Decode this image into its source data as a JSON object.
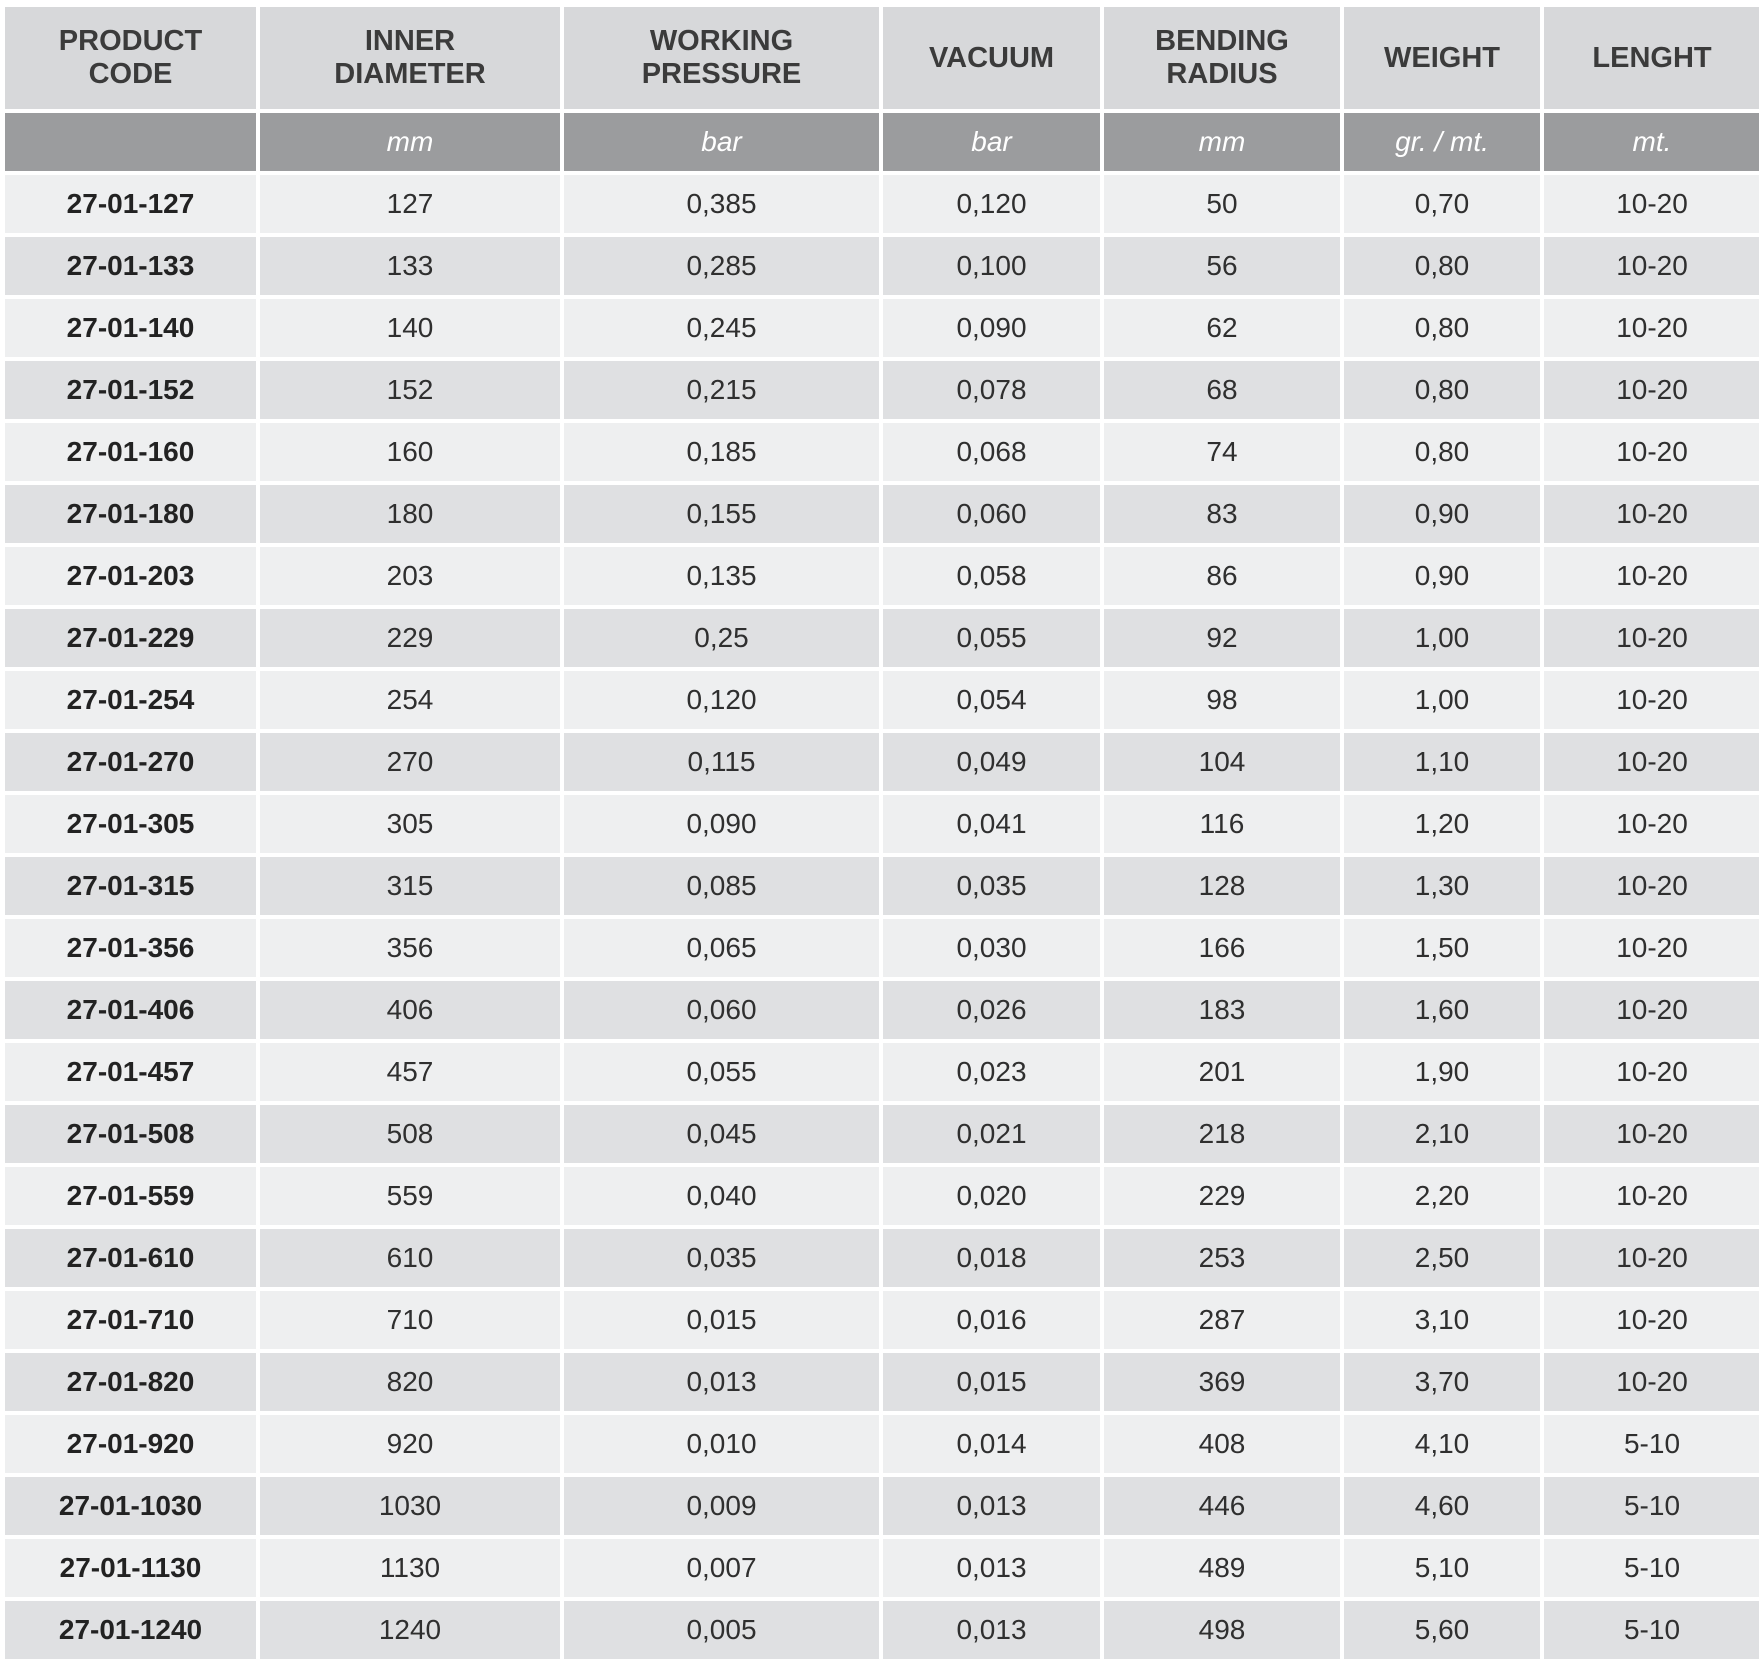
{
  "table": {
    "headers": [
      "PRODUCT\nCODE",
      "INNER\nDIAMETER",
      "WORKING\nPRESSURE",
      "VACUUM",
      "BENDING\nRADIUS",
      "WEIGHT",
      "LENGHT"
    ],
    "units": [
      "",
      "mm",
      "bar",
      "bar",
      "mm",
      "gr. / mt.",
      "mt."
    ],
    "rows": [
      [
        "27-01-127",
        "127",
        "0,385",
        "0,120",
        "50",
        "0,70",
        "10-20"
      ],
      [
        "27-01-133",
        "133",
        "0,285",
        "0,100",
        "56",
        "0,80",
        "10-20"
      ],
      [
        "27-01-140",
        "140",
        "0,245",
        "0,090",
        "62",
        "0,80",
        "10-20"
      ],
      [
        "27-01-152",
        "152",
        "0,215",
        "0,078",
        "68",
        "0,80",
        "10-20"
      ],
      [
        "27-01-160",
        "160",
        "0,185",
        "0,068",
        "74",
        "0,80",
        "10-20"
      ],
      [
        "27-01-180",
        "180",
        "0,155",
        "0,060",
        "83",
        "0,90",
        "10-20"
      ],
      [
        "27-01-203",
        "203",
        "0,135",
        "0,058",
        "86",
        "0,90",
        "10-20"
      ],
      [
        "27-01-229",
        "229",
        "0,25",
        "0,055",
        "92",
        "1,00",
        "10-20"
      ],
      [
        "27-01-254",
        "254",
        "0,120",
        "0,054",
        "98",
        "1,00",
        "10-20"
      ],
      [
        "27-01-270",
        "270",
        "0,115",
        "0,049",
        "104",
        "1,10",
        "10-20"
      ],
      [
        "27-01-305",
        "305",
        "0,090",
        "0,041",
        "116",
        "1,20",
        "10-20"
      ],
      [
        "27-01-315",
        "315",
        "0,085",
        "0,035",
        "128",
        "1,30",
        "10-20"
      ],
      [
        "27-01-356",
        "356",
        "0,065",
        "0,030",
        "166",
        "1,50",
        "10-20"
      ],
      [
        "27-01-406",
        "406",
        "0,060",
        "0,026",
        "183",
        "1,60",
        "10-20"
      ],
      [
        "27-01-457",
        "457",
        "0,055",
        "0,023",
        "201",
        "1,90",
        "10-20"
      ],
      [
        "27-01-508",
        "508",
        "0,045",
        "0,021",
        "218",
        "2,10",
        "10-20"
      ],
      [
        "27-01-559",
        "559",
        "0,040",
        "0,020",
        "229",
        "2,20",
        "10-20"
      ],
      [
        "27-01-610",
        "610",
        "0,035",
        "0,018",
        "253",
        "2,50",
        "10-20"
      ],
      [
        "27-01-710",
        "710",
        "0,015",
        "0,016",
        "287",
        "3,10",
        "10-20"
      ],
      [
        "27-01-820",
        "820",
        "0,013",
        "0,015",
        "369",
        "3,70",
        "10-20"
      ],
      [
        "27-01-920",
        "920",
        "0,010",
        "0,014",
        "408",
        "4,10",
        "5-10"
      ],
      [
        "27-01-1030",
        "1030",
        "0,009",
        "0,013",
        "446",
        "4,60",
        "5-10"
      ],
      [
        "27-01-1130",
        "1130",
        "0,007",
        "0,013",
        "489",
        "5,10",
        "5-10"
      ],
      [
        "27-01-1240",
        "1240",
        "0,005",
        "0,013",
        "498",
        "5,60",
        "5-10"
      ]
    ]
  }
}
